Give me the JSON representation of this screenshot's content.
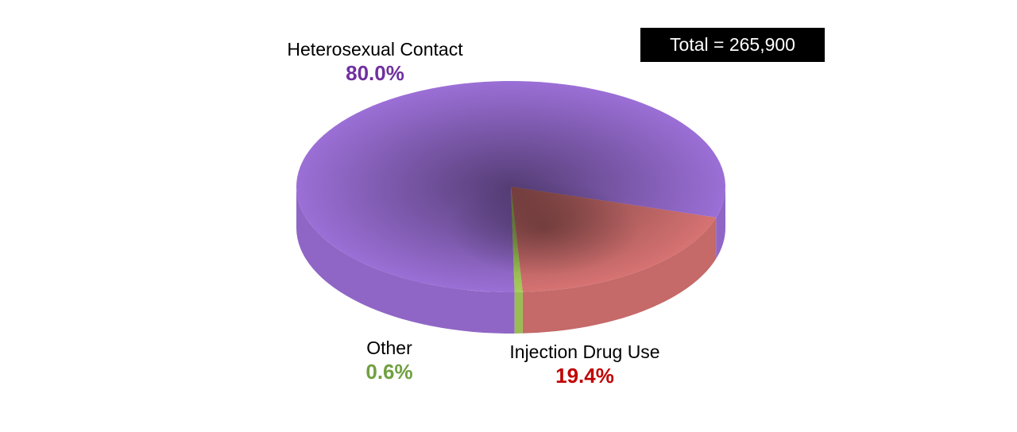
{
  "chart_data": {
    "type": "pie",
    "style": "3d",
    "total_label": "Total = 265,900",
    "slices": [
      {
        "label": "Heterosexual Contact",
        "value": 80.0,
        "value_label": "80.0%",
        "color": "#9b6fd6",
        "label_color": "#7030a0"
      },
      {
        "label": "Injection Drug Use",
        "value": 19.4,
        "value_label": "19.4%",
        "color": "#d67272",
        "label_color": "#c00000"
      },
      {
        "label": "Other",
        "value": 0.6,
        "value_label": "0.6%",
        "color": "#a6cc5a",
        "label_color": "#70a040"
      }
    ]
  }
}
